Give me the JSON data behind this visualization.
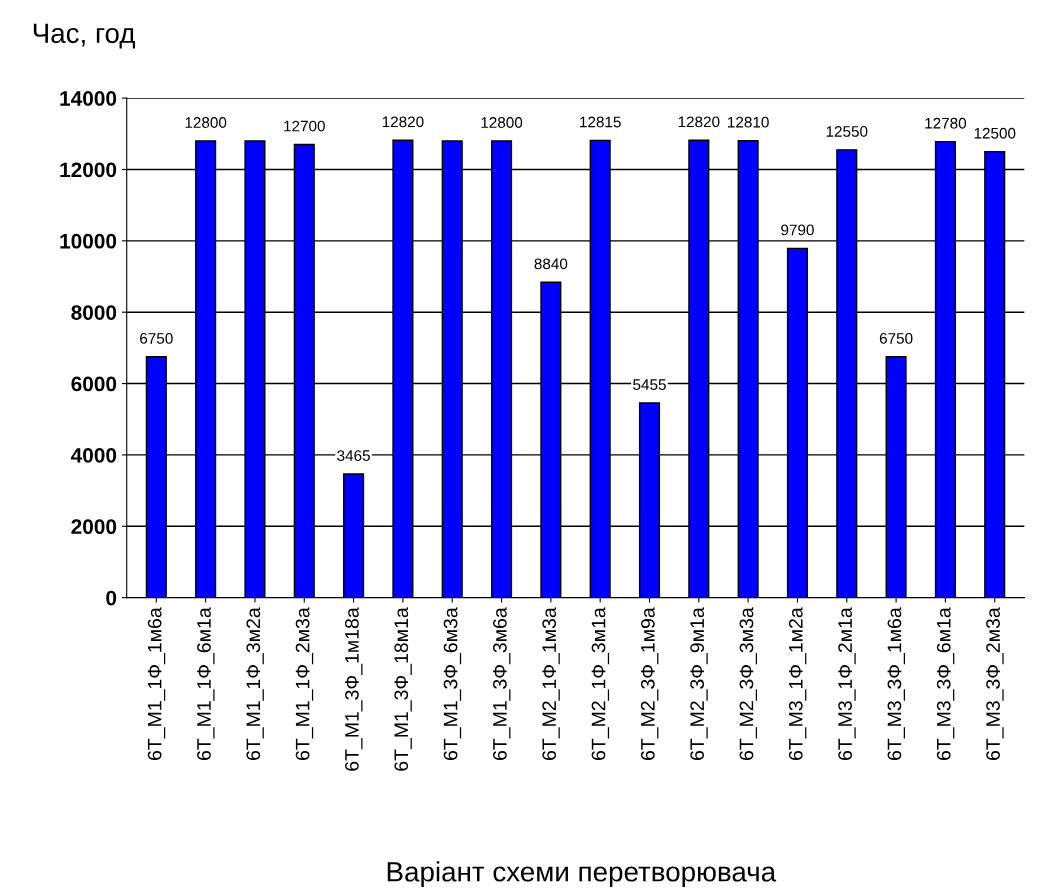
{
  "chart_data": {
    "type": "bar",
    "ylabel": "Час, год",
    "xlabel": "Варіант схеми перетворювача",
    "categories": [
      "6Т_М1_1Ф_1м6а",
      "6Т_М1_1Ф_6м1а",
      "6Т_М1_1Ф_3м2а",
      "6Т_М1_1Ф_2м3а",
      "6Т_М1_3Ф_1м18а",
      "6Т_М1_3Ф_18м1а",
      "6Т_М1_3Ф_6м3а",
      "6Т_М1_3Ф_3м6а",
      "6Т_М2_1Ф_1м3а",
      "6Т_М2_1Ф_3м1а",
      "6Т_М2_3Ф_1м9а",
      "6Т_М2_3Ф_9м1а",
      "6Т_М2_3Ф_3м3а",
      "6Т_М3_1Ф_1м2а",
      "6Т_М3_1Ф_2м1а",
      "6Т_М3_3Ф_1м6а",
      "6Т_М3_3Ф_6м1а",
      "6Т_М3_3Ф_2м3а"
    ],
    "values": [
      6750,
      12800,
      12800,
      12700,
      3465,
      12820,
      12800,
      12800,
      8840,
      12815,
      5455,
      12820,
      12810,
      9790,
      12550,
      6750,
      12780,
      12500
    ],
    "value_labels": [
      "6750",
      "12800",
      null,
      "12700",
      "3465",
      "12820",
      null,
      "12800",
      "8840",
      "12815",
      "5455",
      "12820",
      "12810",
      "9790",
      "12550",
      "6750",
      "12780",
      "12500"
    ],
    "color": "#0000ff",
    "ylim": [
      0,
      14000
    ],
    "yticks": [
      0,
      2000,
      4000,
      6000,
      8000,
      10000,
      12000,
      14000
    ],
    "grid": "y"
  }
}
